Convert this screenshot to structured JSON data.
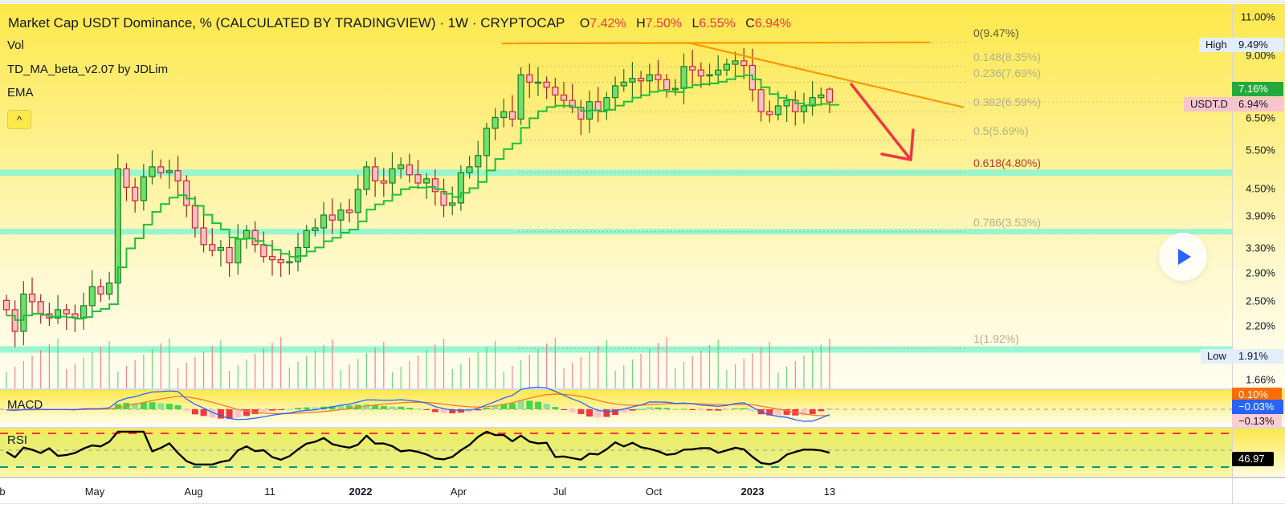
{
  "header": {
    "title": "Market Cap USDT Dominance, % (CALCULATED BY TRADINGVIEW) · 1W · CRYPTOCAP",
    "ohlc": {
      "o_label": "O",
      "o": "7.42%",
      "h_label": "H",
      "h": "7.50%",
      "l_label": "L",
      "l": "6.55%",
      "c_label": "C",
      "c": "6.94%"
    },
    "indicators": [
      "Vol",
      "TD_MA_beta_v2.07 by JDLim",
      "EMA"
    ],
    "collapse_icon": "^"
  },
  "price_axis": {
    "ticks": [
      "11.00%",
      "9.00%",
      "6.50%",
      "5.50%",
      "4.50%",
      "3.90%",
      "3.30%",
      "2.90%",
      "2.50%",
      "2.20%",
      "1.66%"
    ],
    "high": {
      "label": "High",
      "value": "9.49%"
    },
    "low": {
      "label": "Low",
      "value": "1.91%"
    },
    "ema_tag": {
      "value": "7.16%",
      "color": "#22ab3c"
    },
    "symbol_tag": {
      "label": "USDT.D",
      "value": "6.94%",
      "color": "#f8c5cf"
    }
  },
  "fibonacci": [
    {
      "label": "0(9.47%)",
      "kind": "zero"
    },
    {
      "label": "0.148(8.35%)",
      "kind": "normal"
    },
    {
      "label": "0.236(7.69%)",
      "kind": "normal"
    },
    {
      "label": "0.382(6.59%)",
      "kind": "normal"
    },
    {
      "label": "0.5(5.69%)",
      "kind": "normal"
    },
    {
      "label": "0.618(4.80%)",
      "kind": "key"
    },
    {
      "label": "0.786(3.53%)",
      "kind": "normal"
    },
    {
      "label": "1(1.92%)",
      "kind": "normal"
    }
  ],
  "macd": {
    "title": "MACD",
    "values": {
      "signal": "0.10%",
      "macd": "−0.03%",
      "hist": "−0.13%"
    },
    "colors": {
      "signal": "#ff6d00",
      "macd": "#2962ff",
      "hist": "#ffcdd2"
    }
  },
  "rsi": {
    "title": "RSI",
    "value": "46.97"
  },
  "time_axis": [
    {
      "label": "b",
      "bold": false
    },
    {
      "label": "May",
      "bold": false
    },
    {
      "label": "Aug",
      "bold": false
    },
    {
      "label": "11",
      "bold": false
    },
    {
      "label": "2022",
      "bold": true
    },
    {
      "label": "Apr",
      "bold": false
    },
    {
      "label": "Jul",
      "bold": false
    },
    {
      "label": "Oct",
      "bold": false
    },
    {
      "label": "2023",
      "bold": true
    },
    {
      "label": "13",
      "bold": false
    }
  ],
  "controls": {
    "play_button": "play"
  },
  "chart_data": {
    "type": "candlestick",
    "title": "Market Cap USDT Dominance, % (CALCULATED BY TRADINGVIEW) · 1W · CRYPTOCAP",
    "interval": "1W",
    "xlabel": "",
    "ylabel": "USDT dominance %",
    "ylim": [
      1.66,
      11.0
    ],
    "scale": "log",
    "x_ticks": [
      "Feb 2021",
      "May",
      "Aug",
      "Nov (11)",
      "2022",
      "Apr",
      "Jul",
      "Oct",
      "2023",
      "Feb 13"
    ],
    "last_bar": {
      "open": 7.42,
      "high": 7.5,
      "low": 6.55,
      "close": 6.94
    },
    "all_time_high": 9.49,
    "all_time_low": 1.91,
    "ema_last": 7.16,
    "closes_approx": [
      2.35,
      2.1,
      2.55,
      2.45,
      2.3,
      2.25,
      2.35,
      2.3,
      2.25,
      2.4,
      2.65,
      2.55,
      2.7,
      4.9,
      4.45,
      4.15,
      4.7,
      4.95,
      4.8,
      4.85,
      4.6,
      4.05,
      3.6,
      3.3,
      3.2,
      3.25,
      3.0,
      3.4,
      3.55,
      3.3,
      3.1,
      3.05,
      3.0,
      3.02,
      3.25,
      3.55,
      3.6,
      3.85,
      3.75,
      3.95,
      3.9,
      4.4,
      4.95,
      4.6,
      4.55,
      4.9,
      5.0,
      4.75,
      4.55,
      4.65,
      4.35,
      4.05,
      4.1,
      4.8,
      4.95,
      5.25,
      6.05,
      6.4,
      6.6,
      6.35,
      8.0,
      7.7,
      7.7,
      7.5,
      7.2,
      7.0,
      6.75,
      6.35,
      6.95,
      6.65,
      7.1,
      7.55,
      7.7,
      7.85,
      7.75,
      8.0,
      7.8,
      7.4,
      7.45,
      8.35,
      8.2,
      7.95,
      8.0,
      8.2,
      8.45,
      8.6,
      8.4,
      7.4,
      6.6,
      6.5,
      6.8,
      7.0,
      6.6,
      6.8,
      7.1,
      7.2,
      6.94
    ],
    "horizontal_levels": [
      4.8,
      3.53,
      1.91
    ],
    "trendlines": [
      {
        "name": "resistance-flat",
        "from": 9.47,
        "to": 9.47
      },
      {
        "name": "descending-resistance",
        "from": 9.47,
        "to": 6.7
      }
    ],
    "annotation": "red arrow pointing down toward 0.618 fib (4.80%)",
    "macd": {
      "macd": -0.03,
      "signal": 0.1,
      "hist": -0.13
    },
    "rsi": {
      "value": 46.97,
      "upper": 70,
      "middle": 50,
      "lower": 30
    }
  }
}
